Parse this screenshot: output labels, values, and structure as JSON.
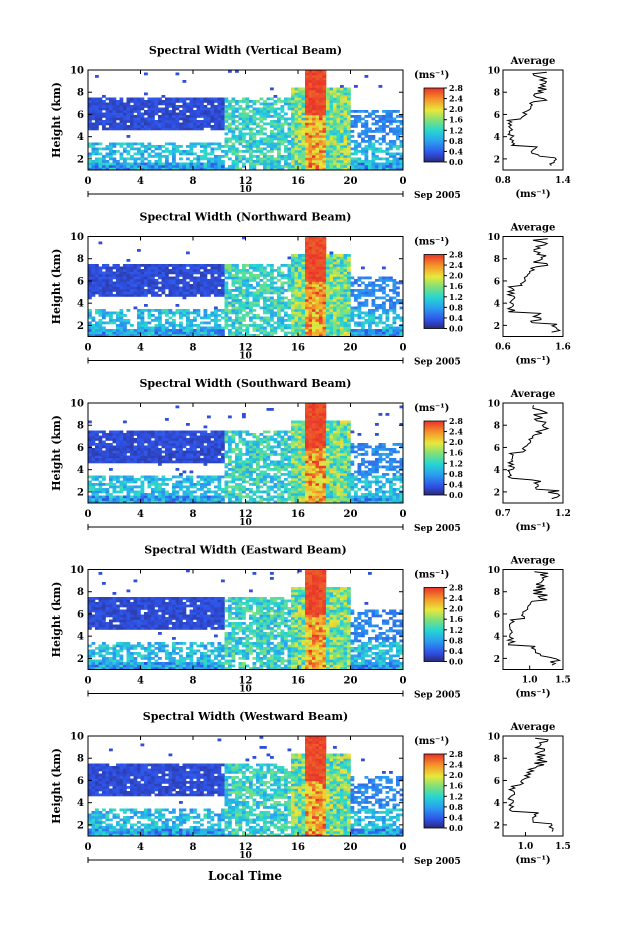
{
  "figure": {
    "xlabel": "Local Time"
  },
  "chart_data": [
    {
      "type": "heatmap",
      "title": "Spectral Width (Vertical Beam)",
      "ylabel": "Height (km)",
      "ylim": [
        1,
        10
      ],
      "xlim": [
        0,
        24
      ],
      "x_ticks": [
        "0",
        "4",
        "8",
        "12",
        "16",
        "20",
        "0"
      ],
      "y_ticks": [
        "10",
        "8",
        "6",
        "4",
        "2"
      ],
      "date_marker": "10",
      "date_label": "Sep 2005",
      "colorbar": {
        "unit": "(ms⁻¹)",
        "min": 0.0,
        "max": 2.8,
        "ticks": [
          "2.8",
          "2.4",
          "2.0",
          "1.6",
          "1.2",
          "0.8",
          "0.4",
          "0.0"
        ]
      },
      "profile": {
        "title": "Average",
        "xlabel": "(ms⁻¹)",
        "xlim": [
          0.8,
          1.4
        ],
        "x_ticks": [
          "0.8",
          "1.4"
        ],
        "y_ticks": [
          "10",
          "8",
          "6",
          "4",
          "2"
        ]
      }
    },
    {
      "type": "heatmap",
      "title": "Spectral Width (Northward Beam)",
      "ylabel": "Height (km)",
      "ylim": [
        1,
        10
      ],
      "xlim": [
        0,
        24
      ],
      "x_ticks": [
        "0",
        "4",
        "8",
        "12",
        "16",
        "20",
        "0"
      ],
      "y_ticks": [
        "10",
        "8",
        "6",
        "4",
        "2"
      ],
      "date_marker": "10",
      "date_label": "Sep 2005",
      "colorbar": {
        "unit": "(ms⁻¹)",
        "min": 0.0,
        "max": 2.8,
        "ticks": [
          "2.8",
          "2.4",
          "2.0",
          "1.6",
          "1.2",
          "0.8",
          "0.4",
          "0.0"
        ]
      },
      "profile": {
        "title": "Average",
        "xlabel": "(ms⁻¹)",
        "xlim": [
          0.6,
          1.6
        ],
        "x_ticks": [
          "0.6",
          "1.6"
        ],
        "y_ticks": [
          "10",
          "8",
          "6",
          "4",
          "2"
        ]
      }
    },
    {
      "type": "heatmap",
      "title": "Spectral Width (Southward Beam)",
      "ylabel": "Height (km)",
      "ylim": [
        1,
        10
      ],
      "xlim": [
        0,
        24
      ],
      "x_ticks": [
        "0",
        "4",
        "8",
        "12",
        "16",
        "20",
        "0"
      ],
      "y_ticks": [
        "10",
        "8",
        "6",
        "4",
        "2"
      ],
      "date_marker": "10",
      "date_label": "Sep 2005",
      "colorbar": {
        "unit": "(ms⁻¹)",
        "min": 0.0,
        "max": 2.8,
        "ticks": [
          "2.8",
          "2.4",
          "2.0",
          "1.6",
          "1.2",
          "0.8",
          "0.4",
          "0.0"
        ]
      },
      "profile": {
        "title": "Average",
        "xlabel": "(ms⁻¹)",
        "xlim": [
          0.7,
          1.2
        ],
        "x_ticks": [
          "0.7",
          "1.2"
        ],
        "y_ticks": [
          "10",
          "8",
          "6",
          "4",
          "2"
        ]
      }
    },
    {
      "type": "heatmap",
      "title": "Spectral Width (Eastward Beam)",
      "ylabel": "Height (km)",
      "ylim": [
        1,
        10
      ],
      "xlim": [
        0,
        24
      ],
      "x_ticks": [
        "0",
        "4",
        "8",
        "12",
        "16",
        "20",
        "0"
      ],
      "y_ticks": [
        "10",
        "8",
        "6",
        "4",
        "2"
      ],
      "date_marker": "10",
      "date_label": "Sep 2005",
      "colorbar": {
        "unit": "(ms⁻¹)",
        "min": 0.0,
        "max": 2.8,
        "ticks": [
          "2.8",
          "2.4",
          "2.0",
          "1.6",
          "1.2",
          "0.8",
          "0.4",
          "0.0"
        ]
      },
      "profile": {
        "title": "Average",
        "xlabel": "(ms⁻¹)",
        "xlim": [
          0.6,
          1.5
        ],
        "x_ticks": [
          "1.0",
          "1.5"
        ],
        "y_ticks": [
          "10",
          "8",
          "6",
          "4",
          "2"
        ]
      }
    },
    {
      "type": "heatmap",
      "title": "Spectral Width (Westward Beam)",
      "ylabel": "Height (km)",
      "ylim": [
        1,
        10
      ],
      "xlim": [
        0,
        24
      ],
      "x_ticks": [
        "0",
        "4",
        "8",
        "12",
        "16",
        "20",
        "0"
      ],
      "y_ticks": [
        "10",
        "8",
        "6",
        "4",
        "2"
      ],
      "date_marker": "10",
      "date_label": "Sep 2005",
      "colorbar": {
        "unit": "(ms⁻¹)",
        "min": 0.0,
        "max": 2.8,
        "ticks": [
          "2.8",
          "2.4",
          "2.0",
          "1.6",
          "1.2",
          "0.8",
          "0.4",
          "0.0"
        ]
      },
      "profile": {
        "title": "Average",
        "xlabel": "(ms⁻¹)",
        "xlim": [
          0.7,
          1.5
        ],
        "x_ticks": [
          "1.0",
          "1.5"
        ],
        "y_ticks": [
          "10",
          "8",
          "6",
          "4",
          "2"
        ]
      }
    }
  ]
}
